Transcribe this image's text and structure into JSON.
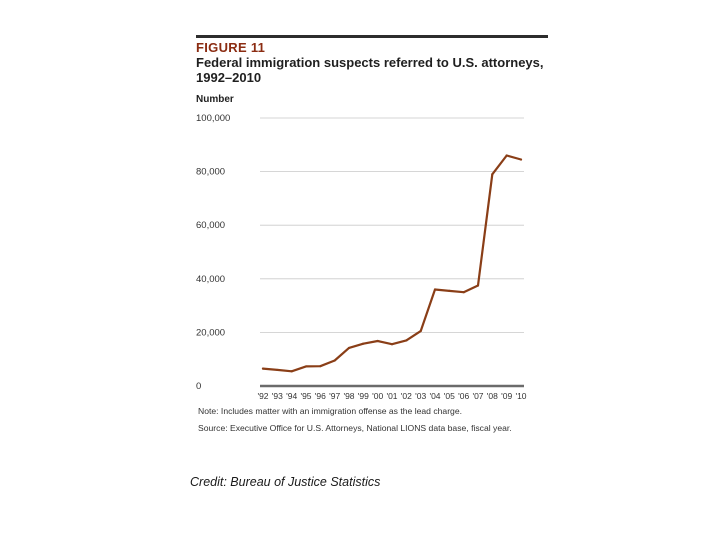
{
  "chart_data": {
    "type": "line",
    "figure_label": "FIGURE 11",
    "title": "Federal immigration suspects referred to U.S. attorneys, 1992–2010",
    "ylabel": "Number",
    "xlabel": "",
    "ylim": [
      0,
      100000
    ],
    "yticks": [
      0,
      20000,
      40000,
      60000,
      80000,
      100000
    ],
    "ytick_labels": [
      "0",
      "20,000",
      "40,000",
      "60,000",
      "80,000",
      "100,000"
    ],
    "categories": [
      "'92",
      "'93",
      "'94",
      "'95",
      "'96",
      "'97",
      "'98",
      "'99",
      "'00",
      "'01",
      "'02",
      "'03",
      "'04",
      "'05",
      "'06",
      "'07",
      "'08",
      "'09",
      "'10"
    ],
    "series": [
      {
        "name": "Immigration suspects referred",
        "color": "#8a3e17",
        "values": [
          6500,
          6000,
          5500,
          7300,
          7400,
          9500,
          14200,
          15800,
          16800,
          15600,
          17000,
          20500,
          36000,
          35500,
          35000,
          37500,
          79000,
          86000,
          84500
        ]
      }
    ],
    "grid": true,
    "note": "Note: Includes matter with an immigration offense as the lead charge.",
    "source": "Source: Executive Office for U.S. Attorneys, National LIONS data base, fiscal year."
  },
  "credit": "Credit: Bureau of Justice Statistics"
}
